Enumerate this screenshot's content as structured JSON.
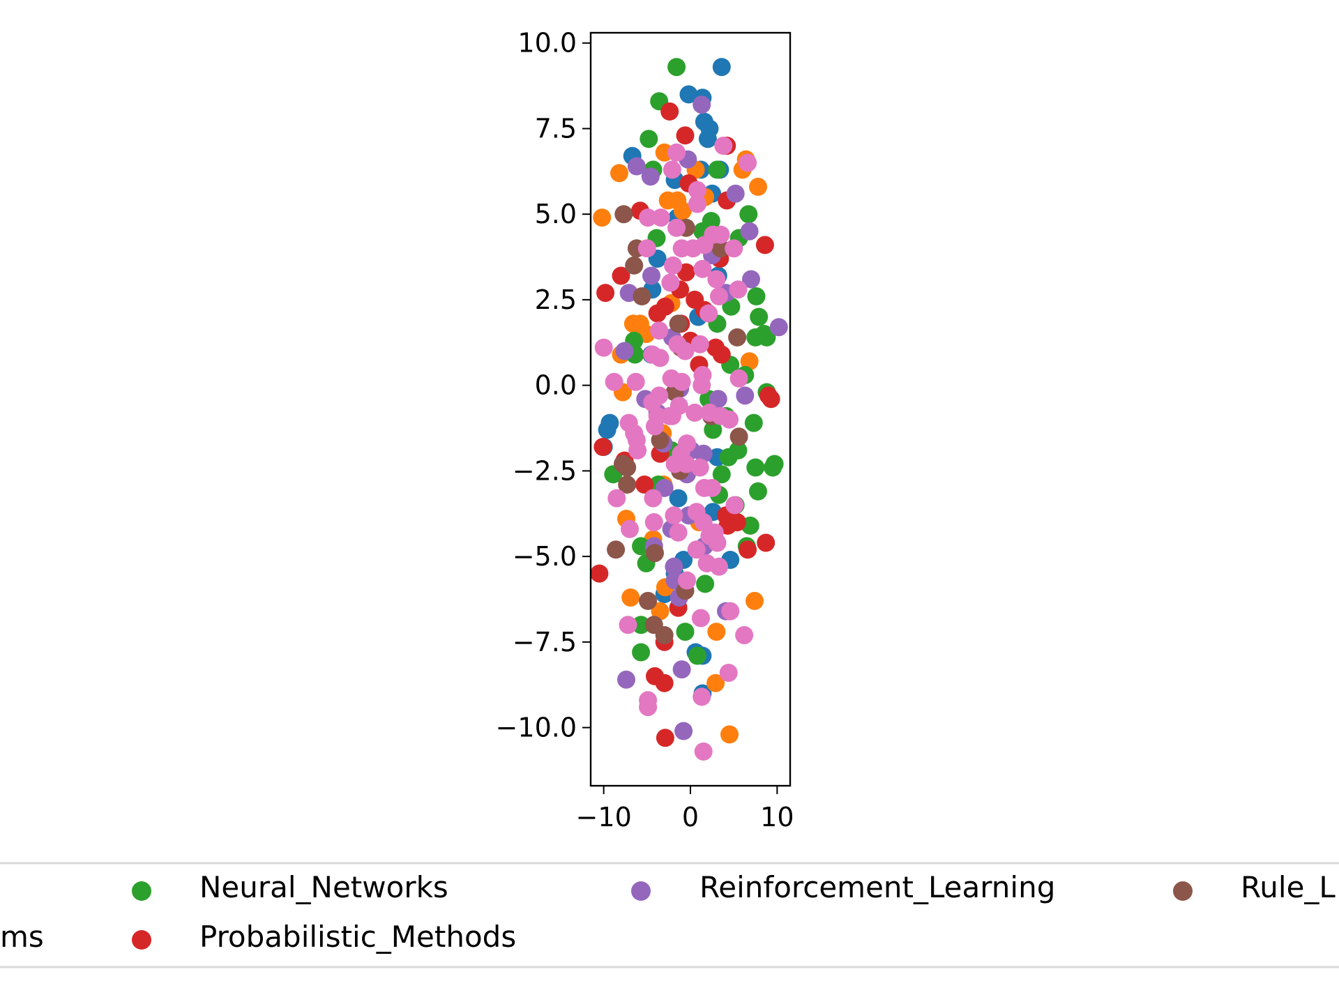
{
  "chart_data": {
    "type": "scatter",
    "title": "",
    "xlabel": "",
    "ylabel": "",
    "xlim": [
      -11.5,
      11.5
    ],
    "ylim": [
      -11.7,
      10.3
    ],
    "xticks": [
      {
        "value": -10,
        "label": "−10"
      },
      {
        "value": 0,
        "label": "0"
      },
      {
        "value": 10,
        "label": "10"
      }
    ],
    "yticks": [
      {
        "value": 10,
        "label": "10.0"
      },
      {
        "value": 7.5,
        "label": "7.5"
      },
      {
        "value": 5,
        "label": "5.0"
      },
      {
        "value": 2.5,
        "label": "2.5"
      },
      {
        "value": 0,
        "label": "0.0"
      },
      {
        "value": -2.5,
        "label": "−2.5"
      },
      {
        "value": -5,
        "label": "−5.0"
      },
      {
        "value": -7.5,
        "label": "−7.5"
      },
      {
        "value": -10,
        "label": "−10.0"
      }
    ],
    "grid": false,
    "legend": {
      "placement": "bottom",
      "visible_entries": [
        {
          "label": "ms",
          "color": "#ff7f0e",
          "partial": true
        },
        {
          "label": "Neural_Networks",
          "color": "#2ca02c"
        },
        {
          "label": "Probabilistic_Methods",
          "color": "#d62728"
        },
        {
          "label": "Reinforcement_Learning",
          "color": "#9467bd"
        },
        {
          "label": "Rule_L",
          "color": "#8c564b",
          "partial": true
        }
      ]
    },
    "series": [
      {
        "color": "#1f77b4",
        "points": [
          [
            3.6,
            9.3
          ],
          [
            -0.2,
            8.5
          ],
          [
            1.4,
            8.4
          ],
          [
            1.6,
            7.7
          ],
          [
            2.2,
            7.5
          ],
          [
            2.0,
            7.2
          ],
          [
            -6.7,
            6.7
          ],
          [
            1.2,
            6.3
          ],
          [
            3.4,
            6.3
          ],
          [
            -1.8,
            6.0
          ],
          [
            2.5,
            5.6
          ],
          [
            -1.5,
            4.9
          ],
          [
            -3.8,
            3.7
          ],
          [
            3.2,
            3.2
          ],
          [
            -4.4,
            2.8
          ],
          [
            -9.3,
            -1.1
          ],
          [
            -9.6,
            -1.3
          ],
          [
            -10.0,
            -1.8
          ],
          [
            -0.8,
            -5.1
          ],
          [
            4.6,
            -5.1
          ],
          [
            1.4,
            -7.9
          ],
          [
            1.4,
            -9.0
          ],
          [
            0.6,
            -7.8
          ],
          [
            -1.8,
            -5.5
          ],
          [
            -3.0,
            -6.1
          ],
          [
            2.6,
            -3.7
          ],
          [
            -1.4,
            -3.3
          ],
          [
            3.1,
            -2.1
          ],
          [
            -4.5,
            0.9
          ],
          [
            0.9,
            2.0
          ]
        ]
      },
      {
        "color": "#ff7f0e",
        "points": [
          [
            -10.2,
            4.9
          ],
          [
            -8.2,
            6.2
          ],
          [
            -3.0,
            6.8
          ],
          [
            -2.6,
            5.4
          ],
          [
            -1.5,
            5.4
          ],
          [
            -0.9,
            5.1
          ],
          [
            0.6,
            6.3
          ],
          [
            1.7,
            5.5
          ],
          [
            6.4,
            6.6
          ],
          [
            7.8,
            5.8
          ],
          [
            6.0,
            6.3
          ],
          [
            -6.6,
            1.8
          ],
          [
            -5.8,
            1.8
          ],
          [
            -5.1,
            1.5
          ],
          [
            -7.8,
            -0.2
          ],
          [
            -8.0,
            0.9
          ],
          [
            -3.2,
            -1.4
          ],
          [
            -3.1,
            -2.9
          ],
          [
            -4.3,
            -4.5
          ],
          [
            -6.9,
            -6.2
          ],
          [
            -3.5,
            -6.6
          ],
          [
            3.0,
            -7.2
          ],
          [
            2.9,
            -8.7
          ],
          [
            4.5,
            -10.2
          ],
          [
            7.4,
            -6.3
          ],
          [
            6.8,
            0.7
          ],
          [
            -2.2,
            2.4
          ],
          [
            1.0,
            -4.0
          ],
          [
            -2.9,
            -5.9
          ],
          [
            -7.4,
            -3.9
          ]
        ]
      },
      {
        "color": "#2ca02c",
        "points": [
          [
            -1.6,
            9.3
          ],
          [
            -3.6,
            8.3
          ],
          [
            -4.8,
            7.2
          ],
          [
            -4.3,
            6.3
          ],
          [
            3.1,
            6.3
          ],
          [
            6.7,
            5.0
          ],
          [
            5.6,
            4.3
          ],
          [
            7.6,
            2.6
          ],
          [
            7.9,
            2.0
          ],
          [
            8.5,
            1.5
          ],
          [
            8.8,
            1.4
          ],
          [
            7.5,
            1.4
          ],
          [
            7.3,
            -1.1
          ],
          [
            8.8,
            -0.2
          ],
          [
            9.7,
            -2.3
          ],
          [
            9.5,
            -2.4
          ],
          [
            7.5,
            -2.4
          ],
          [
            7.8,
            -3.1
          ],
          [
            6.9,
            -4.1
          ],
          [
            5.2,
            -3.5
          ],
          [
            6.5,
            -4.7
          ],
          [
            -8.9,
            -2.6
          ],
          [
            -5.7,
            -4.7
          ],
          [
            -5.1,
            -5.2
          ],
          [
            -5.7,
            -7.0
          ],
          [
            -5.7,
            -7.8
          ],
          [
            -0.6,
            -7.2
          ],
          [
            1.7,
            -5.8
          ],
          [
            0.8,
            -7.9
          ],
          [
            5.5,
            -1.9
          ],
          [
            4.4,
            -2.1
          ],
          [
            3.6,
            -2.6
          ],
          [
            2.6,
            -1.3
          ],
          [
            4.6,
            0.6
          ],
          [
            3.1,
            1.8
          ],
          [
            2.1,
            -0.4
          ],
          [
            -6.4,
            0.9
          ],
          [
            -6.5,
            1.3
          ],
          [
            -3.9,
            4.3
          ],
          [
            1.4,
            4.5
          ],
          [
            2.4,
            4.8
          ],
          [
            4.1,
            -0.9
          ],
          [
            3.3,
            -3.2
          ],
          [
            -2.2,
            -1.9
          ],
          [
            -3.7,
            -2.9
          ],
          [
            4.7,
            2.3
          ],
          [
            6.3,
            0.3
          ],
          [
            3.4,
            4.0
          ]
        ]
      },
      {
        "color": "#d62728",
        "points": [
          [
            -2.4,
            8.0
          ],
          [
            -0.6,
            7.3
          ],
          [
            -0.2,
            5.9
          ],
          [
            -5.8,
            5.1
          ],
          [
            -8.0,
            3.2
          ],
          [
            -9.8,
            2.7
          ],
          [
            -10.1,
            -1.8
          ],
          [
            -7.6,
            -2.2
          ],
          [
            -3.5,
            -2.0
          ],
          [
            -5.3,
            -2.9
          ],
          [
            -10.5,
            -5.5
          ],
          [
            -4.1,
            -8.5
          ],
          [
            -3.0,
            -7.5
          ],
          [
            -3.0,
            -8.7
          ],
          [
            -2.9,
            -10.3
          ],
          [
            -1.4,
            -6.5
          ],
          [
            8.6,
            4.1
          ],
          [
            9.0,
            -0.3
          ],
          [
            9.3,
            -0.4
          ],
          [
            8.7,
            -4.6
          ],
          [
            6.6,
            -4.8
          ],
          [
            5.4,
            -4.0
          ],
          [
            4.3,
            -4.1
          ],
          [
            4.1,
            -3.8
          ],
          [
            3.4,
            3.7
          ],
          [
            4.2,
            5.4
          ],
          [
            4.2,
            7.0
          ],
          [
            3.6,
            0.9
          ],
          [
            0.5,
            2.5
          ],
          [
            -0.5,
            3.3
          ],
          [
            -1.2,
            2.8
          ],
          [
            -1.1,
            1.8
          ],
          [
            0.0,
            1.3
          ],
          [
            1.0,
            0.6
          ],
          [
            1.6,
            2.2
          ],
          [
            -2.9,
            2.3
          ],
          [
            -3.8,
            2.1
          ],
          [
            2.9,
            1.1
          ]
        ]
      },
      {
        "color": "#9467bd",
        "points": [
          [
            1.3,
            8.2
          ],
          [
            -6.2,
            6.4
          ],
          [
            -4.6,
            6.1
          ],
          [
            -0.3,
            6.6
          ],
          [
            6.8,
            4.5
          ],
          [
            5.2,
            5.6
          ],
          [
            10.2,
            1.7
          ],
          [
            7.0,
            3.1
          ],
          [
            4.1,
            2.7
          ],
          [
            -4.5,
            3.2
          ],
          [
            -7.1,
            2.7
          ],
          [
            -7.6,
            1.0
          ],
          [
            -5.2,
            -0.4
          ],
          [
            -3.8,
            -0.8
          ],
          [
            -1.2,
            -0.1
          ],
          [
            3.2,
            -0.4
          ],
          [
            6.3,
            -0.3
          ],
          [
            0.1,
            -1.9
          ],
          [
            -0.2,
            -3.8
          ],
          [
            1.6,
            -4.7
          ],
          [
            -4.2,
            -4.7
          ],
          [
            -1.9,
            -5.3
          ],
          [
            -1.8,
            -5.7
          ],
          [
            -1.3,
            -6.2
          ],
          [
            -7.4,
            -8.6
          ],
          [
            -1.0,
            -8.3
          ],
          [
            -0.8,
            -10.1
          ],
          [
            4.1,
            -6.6
          ],
          [
            1.5,
            -2.0
          ],
          [
            -0.4,
            -2.6
          ],
          [
            -3.1,
            -1.7
          ],
          [
            -2.1,
            1.4
          ],
          [
            2.5,
            3.8
          ],
          [
            -2.2,
            -4.2
          ],
          [
            -3.0,
            -3.0
          ]
        ]
      },
      {
        "color": "#8c564b",
        "points": [
          [
            -7.7,
            5.0
          ],
          [
            -6.2,
            4.0
          ],
          [
            -6.5,
            3.5
          ],
          [
            -5.6,
            2.6
          ],
          [
            -1.4,
            1.8
          ],
          [
            -0.5,
            4.6
          ],
          [
            -7.8,
            -2.3
          ],
          [
            -7.3,
            -2.4
          ],
          [
            -7.3,
            -2.9
          ],
          [
            -8.6,
            -4.8
          ],
          [
            -4.1,
            -4.9
          ],
          [
            -4.9,
            -6.3
          ],
          [
            -4.2,
            -7.0
          ],
          [
            -3.0,
            -7.3
          ],
          [
            -0.6,
            -6.0
          ],
          [
            -3.5,
            -1.6
          ],
          [
            -1.2,
            -2.5
          ],
          [
            -1.8,
            -0.2
          ],
          [
            2.4,
            -0.9
          ],
          [
            5.6,
            -1.5
          ],
          [
            5.4,
            1.4
          ],
          [
            3.5,
            4.0
          ],
          [
            -1.1,
            1.1
          ]
        ]
      },
      {
        "color": "#e377c2",
        "points": [
          [
            -1.6,
            6.8
          ],
          [
            -2.1,
            6.3
          ],
          [
            0.8,
            5.7
          ],
          [
            3.8,
            7.0
          ],
          [
            6.6,
            6.5
          ],
          [
            0.8,
            5.3
          ],
          [
            -4.9,
            4.9
          ],
          [
            -3.4,
            4.9
          ],
          [
            -1.6,
            4.6
          ],
          [
            -1.0,
            4.0
          ],
          [
            0.3,
            4.0
          ],
          [
            1.6,
            4.1
          ],
          [
            2.6,
            4.4
          ],
          [
            3.5,
            4.4
          ],
          [
            5.0,
            4.0
          ],
          [
            -5.0,
            4.0
          ],
          [
            -2.0,
            3.5
          ],
          [
            -2.3,
            3.0
          ],
          [
            1.4,
            3.4
          ],
          [
            3.0,
            3.1
          ],
          [
            5.5,
            2.8
          ],
          [
            3.3,
            2.6
          ],
          [
            2.1,
            2.1
          ],
          [
            -3.6,
            1.6
          ],
          [
            -10.0,
            1.1
          ],
          [
            -4.4,
            0.9
          ],
          [
            -3.5,
            0.8
          ],
          [
            -1.5,
            1.2
          ],
          [
            -0.6,
            1.0
          ],
          [
            1.1,
            1.2
          ],
          [
            -8.8,
            0.1
          ],
          [
            -6.3,
            0.1
          ],
          [
            -3.6,
            -0.3
          ],
          [
            -2.2,
            0.2
          ],
          [
            -1.0,
            0.1
          ],
          [
            1.4,
            0.3
          ],
          [
            1.3,
            0.0
          ],
          [
            5.6,
            0.2
          ],
          [
            -4.4,
            -0.5
          ],
          [
            -3.8,
            -0.9
          ],
          [
            -2.4,
            -0.9
          ],
          [
            -1.3,
            -0.6
          ],
          [
            0.5,
            -0.8
          ],
          [
            2.2,
            -0.8
          ],
          [
            3.5,
            -0.9
          ],
          [
            4.5,
            -1.0
          ],
          [
            -7.1,
            -1.1
          ],
          [
            -6.5,
            -1.4
          ],
          [
            -6.2,
            -1.6
          ],
          [
            -6.1,
            -1.9
          ],
          [
            -4.1,
            -1.2
          ],
          [
            -2.1,
            -0.9
          ],
          [
            -0.4,
            -1.7
          ],
          [
            -1.1,
            -2.0
          ],
          [
            -1.8,
            -2.3
          ],
          [
            -0.5,
            -2.3
          ],
          [
            1.1,
            -2.4
          ],
          [
            1.6,
            -3.0
          ],
          [
            2.5,
            -3.0
          ],
          [
            -8.5,
            -3.3
          ],
          [
            -4.3,
            -3.3
          ],
          [
            -1.9,
            -3.8
          ],
          [
            0.7,
            -3.7
          ],
          [
            1.5,
            -4.0
          ],
          [
            2.8,
            -4.3
          ],
          [
            3.1,
            -4.6
          ],
          [
            -7.0,
            -4.2
          ],
          [
            -4.2,
            -4.0
          ],
          [
            -1.4,
            -4.3
          ],
          [
            0.7,
            -4.8
          ],
          [
            1.9,
            -5.2
          ],
          [
            3.3,
            -5.3
          ],
          [
            5.1,
            -3.5
          ],
          [
            -7.2,
            -7.0
          ],
          [
            -4.9,
            -9.2
          ],
          [
            -4.9,
            -9.4
          ],
          [
            1.2,
            -6.8
          ],
          [
            4.4,
            -8.4
          ],
          [
            1.3,
            -9.1
          ],
          [
            1.5,
            -10.7
          ],
          [
            6.2,
            -7.3
          ],
          [
            4.6,
            -6.6
          ],
          [
            -0.4,
            -5.7
          ],
          [
            2.2,
            -4.4
          ]
        ]
      }
    ]
  }
}
